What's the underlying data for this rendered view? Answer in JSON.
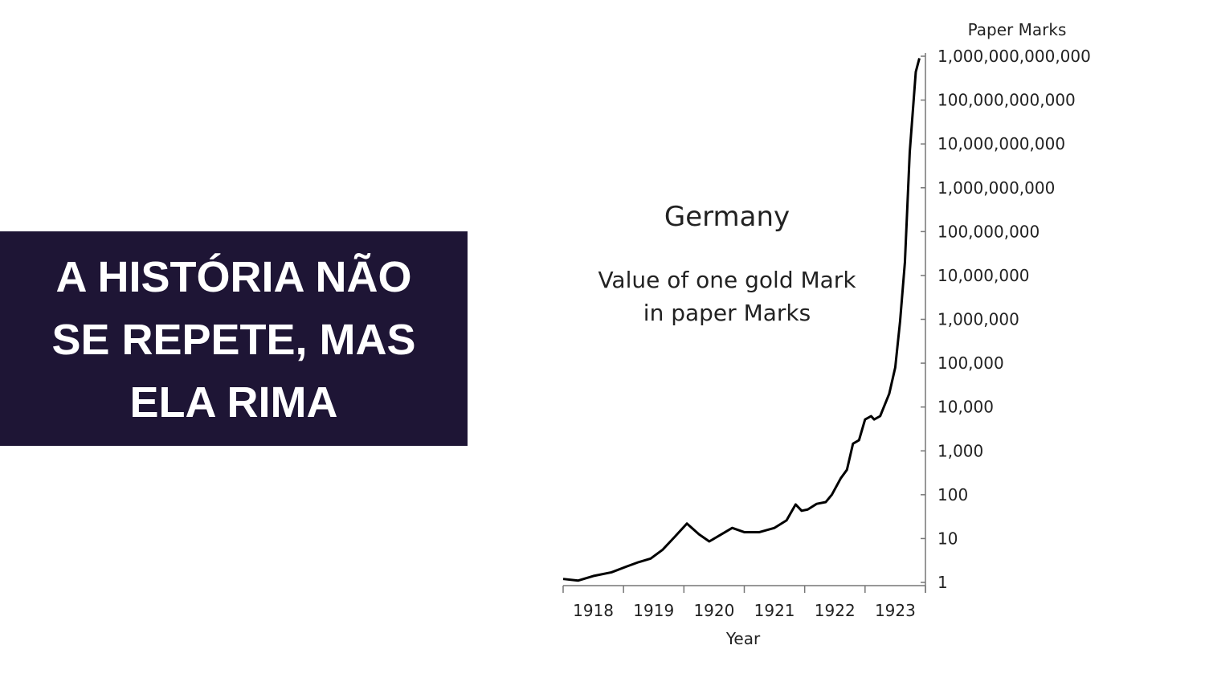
{
  "headline": [
    "A HISTÓRIA NÃO",
    "SE REPETE, MAS",
    "ELA RIMA"
  ],
  "chart_data": {
    "type": "line",
    "title": "Germany",
    "subtitle": [
      "Value of one gold Mark",
      "in paper Marks"
    ],
    "x_label": "Year",
    "y_label": "Paper Marks",
    "yscale": "log",
    "color": "#000000",
    "xlim": [
      1918,
      1924
    ],
    "xticks": [
      1918,
      1919,
      1920,
      1921,
      1922,
      1923
    ],
    "ylim": [
      1,
      1000000000000
    ],
    "yticks": [
      1,
      10,
      100,
      {
        "value": 1000,
        "label": "1,000"
      },
      {
        "value": 10000,
        "label": "10,000"
      },
      {
        "value": 100000,
        "label": "100,000"
      },
      {
        "value": 1000000,
        "label": "1,000,000"
      },
      {
        "value": 10000000,
        "label": "10,000,000"
      },
      {
        "value": 100000000,
        "label": "100,000,000"
      },
      {
        "value": 1000000000,
        "label": "1,000,000,000"
      },
      {
        "value": 10000000000,
        "label": "10,000,000,000"
      },
      {
        "value": 100000000000,
        "label": "100,000,000,000"
      },
      {
        "value": 1000000000000,
        "label": "1,000,000,000,000"
      }
    ],
    "x": [
      1918.0,
      1918.25,
      1918.5,
      1918.8,
      1919.05,
      1919.25,
      1919.45,
      1919.65,
      1919.85,
      1920.05,
      1920.25,
      1920.42,
      1920.6,
      1920.8,
      1921.0,
      1921.25,
      1921.5,
      1921.7,
      1921.85,
      1921.95,
      1922.05,
      1922.2,
      1922.35,
      1922.45,
      1922.6,
      1922.7,
      1922.8,
      1922.9,
      1923.0,
      1923.1,
      1923.15,
      1923.25,
      1923.4,
      1923.5,
      1923.58,
      1923.66,
      1923.74,
      1923.84,
      1923.9
    ],
    "values": [
      1.2,
      1.1,
      1.4,
      1.7,
      2.3,
      2.9,
      3.5,
      5.6,
      11,
      22,
      12.5,
      8.6,
      12,
      17.5,
      14,
      14,
      17.5,
      26,
      60,
      43,
      46,
      62,
      68,
      100,
      240,
      370,
      1460,
      1750,
      5200,
      6200,
      5200,
      6200,
      20000,
      80000,
      900000,
      20000000,
      6500000000,
      440000000000,
      900000000000
    ]
  }
}
